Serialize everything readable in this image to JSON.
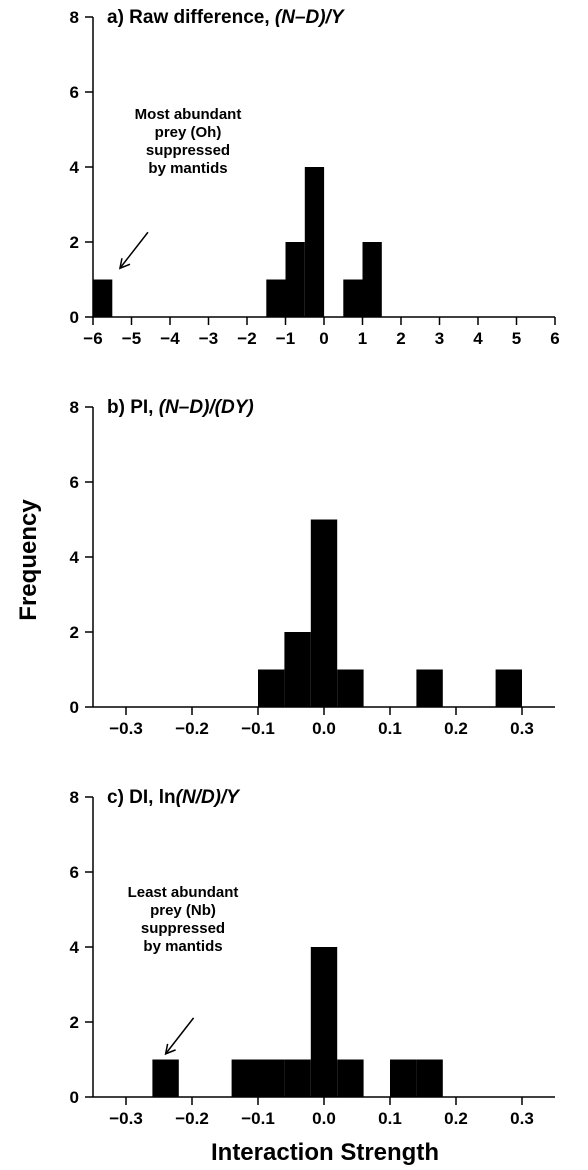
{
  "figure": {
    "ylabel": "Frequency",
    "xlabel": "Interaction Strength"
  },
  "chart_data": [
    {
      "type": "bar",
      "panel": "a",
      "title_plain": "a) Raw difference, ",
      "title_italic": "(N–D)/Y",
      "ylim": [
        0,
        8
      ],
      "yticks": [
        0,
        2,
        4,
        6,
        8
      ],
      "xlim": [
        -6,
        6
      ],
      "xticks": [
        "−6",
        "−5",
        "−4",
        "−3",
        "−2",
        "−1",
        "0",
        "1",
        "2",
        "3",
        "4",
        "5",
        "6"
      ],
      "xtick_values": [
        -6,
        -5,
        -4,
        -3,
        -2,
        -1,
        0,
        1,
        2,
        3,
        4,
        5,
        6
      ],
      "bin_width": 0.5,
      "bins": [
        {
          "x0": -6.0,
          "x1": -5.5,
          "count": 1
        },
        {
          "x0": -1.5,
          "x1": -1.0,
          "count": 1
        },
        {
          "x0": -1.0,
          "x1": -0.5,
          "count": 2
        },
        {
          "x0": -0.5,
          "x1": 0.0,
          "count": 4
        },
        {
          "x0": 0.5,
          "x1": 1.0,
          "count": 1
        },
        {
          "x0": 1.0,
          "x1": 1.5,
          "count": 2
        }
      ],
      "annotation": {
        "lines": [
          "Most abundant",
          "prey (Oh)",
          "suppressed",
          "by mantids"
        ],
        "arrow_to": {
          "x": -5.3,
          "y": 1.3
        }
      }
    },
    {
      "type": "bar",
      "panel": "b",
      "title_plain": "b) PI, ",
      "title_italic": "(N–D)/(DY)",
      "ylim": [
        0,
        8
      ],
      "yticks": [
        0,
        2,
        4,
        6,
        8
      ],
      "xlim": [
        -0.35,
        0.35
      ],
      "xticks": [
        "−0.3",
        "−0.2",
        "−0.1",
        "0.0",
        "0.1",
        "0.2",
        "0.3"
      ],
      "xtick_values": [
        -0.3,
        -0.2,
        -0.1,
        0.0,
        0.1,
        0.2,
        0.3
      ],
      "bin_width": 0.04,
      "bins": [
        {
          "x0": -0.1,
          "x1": -0.06,
          "count": 1
        },
        {
          "x0": -0.06,
          "x1": -0.02,
          "count": 2
        },
        {
          "x0": -0.02,
          "x1": 0.02,
          "count": 5
        },
        {
          "x0": 0.02,
          "x1": 0.06,
          "count": 1
        },
        {
          "x0": 0.14,
          "x1": 0.18,
          "count": 1
        },
        {
          "x0": 0.26,
          "x1": 0.3,
          "count": 1
        }
      ]
    },
    {
      "type": "bar",
      "panel": "c",
      "title_plain": "c) DI, ln",
      "title_italic": "(N/D)/Y",
      "ylim": [
        0,
        8
      ],
      "yticks": [
        0,
        2,
        4,
        6,
        8
      ],
      "xlim": [
        -0.35,
        0.35
      ],
      "xticks": [
        "−0.3",
        "−0.2",
        "−0.1",
        "0.0",
        "0.1",
        "0.2",
        "0.3"
      ],
      "xtick_values": [
        -0.3,
        -0.2,
        -0.1,
        0.0,
        0.1,
        0.2,
        0.3
      ],
      "bin_width": 0.04,
      "bins": [
        {
          "x0": -0.26,
          "x1": -0.22,
          "count": 1
        },
        {
          "x0": -0.14,
          "x1": -0.1,
          "count": 1
        },
        {
          "x0": -0.1,
          "x1": -0.06,
          "count": 1
        },
        {
          "x0": -0.06,
          "x1": -0.02,
          "count": 1
        },
        {
          "x0": -0.02,
          "x1": 0.02,
          "count": 4
        },
        {
          "x0": 0.02,
          "x1": 0.06,
          "count": 1
        },
        {
          "x0": 0.1,
          "x1": 0.14,
          "count": 1
        },
        {
          "x0": 0.14,
          "x1": 0.18,
          "count": 1
        }
      ],
      "annotation": {
        "lines": [
          "Least abundant",
          "prey (Nb)",
          "suppressed",
          "by mantids"
        ],
        "arrow_to": {
          "x": -0.24,
          "y": 1.15
        }
      }
    }
  ]
}
